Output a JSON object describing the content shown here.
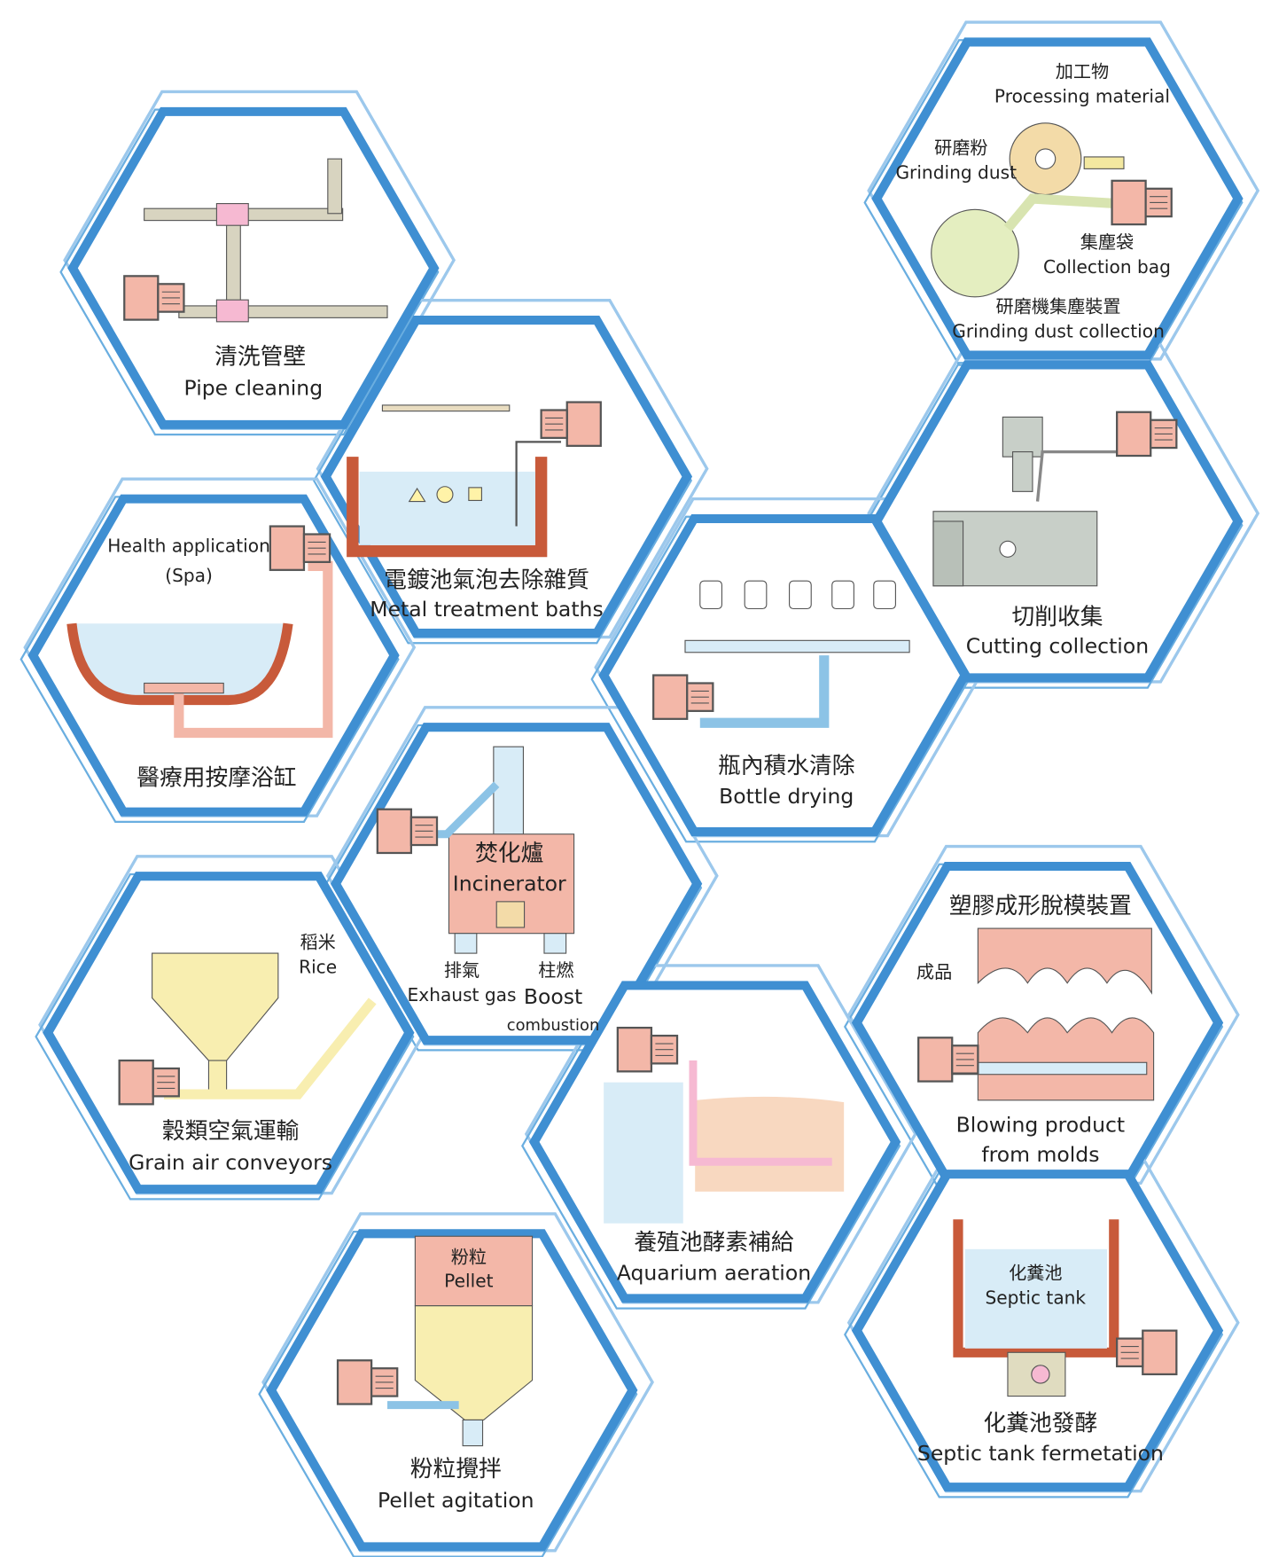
{
  "tiles": {
    "pipe_cleaning": {
      "zh": "清洗管壁",
      "en": "Pipe cleaning"
    },
    "metal_treatment": {
      "zh": "電鍍池氣泡去除雜質",
      "en": "Metal treatment baths"
    },
    "spa": {
      "note_en": "Health application",
      "note_en2": "(Spa)",
      "zh": "醫療用按摩浴缸"
    },
    "grinding": {
      "part1_zh": "加工物",
      "part1_en": "Processing material",
      "part2_zh": "研磨粉",
      "part2_en": "Grinding dust",
      "part3_zh": "集塵袋",
      "part3_en": "Collection bag",
      "zh": "研磨機集塵裝置",
      "en": "Grinding dust collection"
    },
    "cutting": {
      "zh": "切削收集",
      "en": "Cutting collection"
    },
    "bottle": {
      "zh": "瓶內積水清除",
      "en": "Bottle drying"
    },
    "incinerator": {
      "zh": "焚化爐",
      "en": "Incinerator",
      "exhaust_zh": "排氣",
      "exhaust_en": "Exhaust gas",
      "boost_zh": "柱燃",
      "boost_en": "Boost",
      "boost_en2": "combustion"
    },
    "grain": {
      "part_zh": "稻米",
      "part_en": "Rice",
      "zh": "穀類空氣運輸",
      "en": "Grain air conveyors"
    },
    "aquarium": {
      "zh": "養殖池酵素補給",
      "en": "Aquarium aeration"
    },
    "molds": {
      "zh": "塑膠成形脫模裝置",
      "part_zh": "成品",
      "en": "Blowing product",
      "en2": "from molds"
    },
    "septic": {
      "part_zh": "化糞池",
      "part_en": "Septic tank",
      "zh": "化糞池發酵",
      "en": "Septic tank fermetation"
    },
    "pellet": {
      "part_zh": "粉粒",
      "part_en": "Pellet",
      "zh": "粉粒攪拌",
      "en": "Pellet agitation"
    }
  }
}
